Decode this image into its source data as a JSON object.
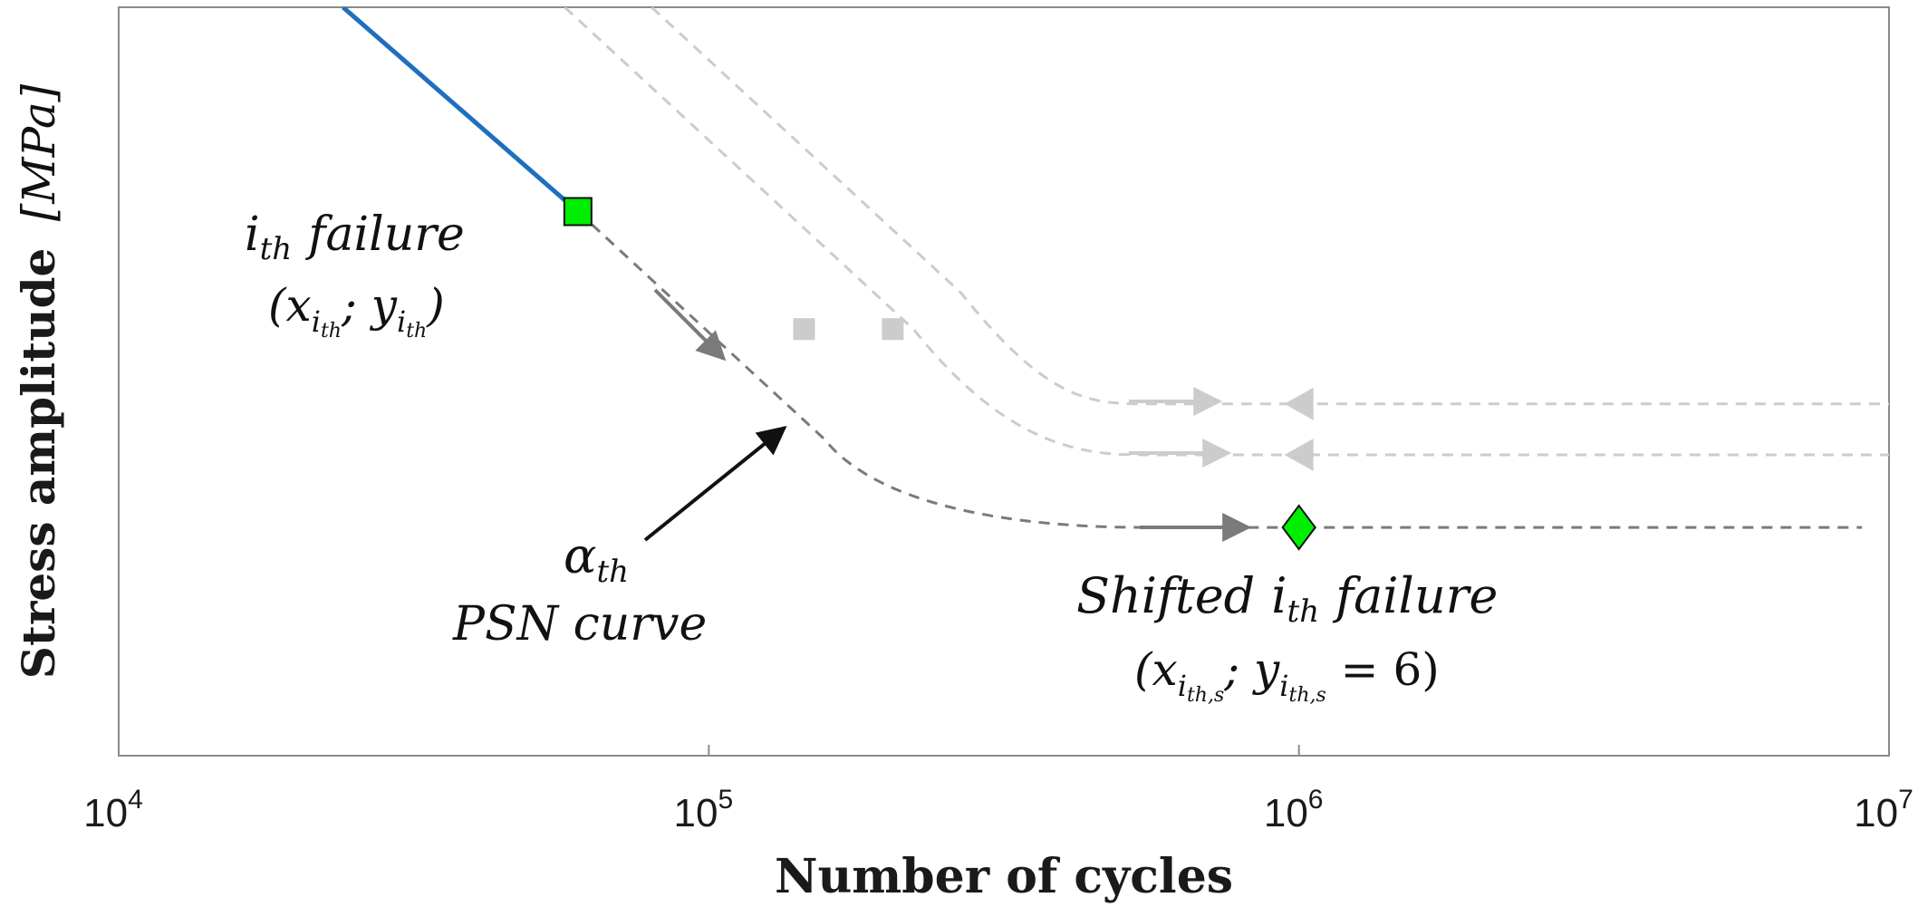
{
  "chart_data": {
    "type": "line",
    "xlabel": "Number of cycles",
    "ylabel": "Stress amplitude",
    "ylabel_unit": "[MPa]",
    "x_scale": "log",
    "xlim": [
      10000,
      10000000
    ],
    "xticks": [
      {
        "value": 10000,
        "mantissa": "10",
        "exponent": "4"
      },
      {
        "value": 100000,
        "mantissa": "10",
        "exponent": "5"
      },
      {
        "value": 1000000,
        "mantissa": "10",
        "exponent": "6"
      },
      {
        "value": 10000000,
        "mantissa": "10",
        "exponent": "7"
      }
    ],
    "ylim": [
      0,
      10
    ],
    "y_tick_labels": "none",
    "grid": false,
    "colors": {
      "solid_curve": "#1f6fbf",
      "alpha_curve": "#7a7a7a",
      "faded_curves": "#cccccc",
      "failure_marker": "#00ee00",
      "annotation_arrow": "#111111"
    },
    "series": [
      {
        "style": "solid",
        "points": [
          [
            24000,
            10
          ],
          [
            60000,
            7.27
          ]
        ]
      },
      {
        "style": "dashed-dark",
        "knee_x": 60000,
        "knee_y": 7.27,
        "plateau_y": 3.05,
        "plateau_start_x": 550000,
        "end_x": 9000000
      },
      {
        "style": "dashed-light",
        "start_x": 57000,
        "start_y": 10,
        "plateau_y": 4.02,
        "plateau_start_x": 550000,
        "end_x": 10000000
      },
      {
        "style": "dashed-light",
        "start_x": 80000,
        "start_y": 10,
        "plateau_y": 4.7,
        "plateau_start_x": 550000,
        "end_x": 10000000
      }
    ],
    "markers": [
      {
        "shape": "square",
        "x": 60000,
        "y": 7.27,
        "color": "#00ee00"
      },
      {
        "shape": "square",
        "x": 145000,
        "y": 5.7,
        "color": "#cccccc"
      },
      {
        "shape": "square",
        "x": 205000,
        "y": 5.7,
        "color": "#cccccc"
      },
      {
        "shape": "diamond",
        "x": 1000000,
        "y": 3.05,
        "color": "#00ee00"
      },
      {
        "shape": "triangle-left",
        "x": 1000000,
        "y": 4.02,
        "color": "#cccccc"
      },
      {
        "shape": "triangle-left",
        "x": 1000000,
        "y": 4.7,
        "color": "#cccccc"
      }
    ],
    "annotations": {
      "ith_failure": {
        "line1_i": "i",
        "line1_sub": "th",
        "line1_word": "failure",
        "line2_open": "(x",
        "line2_sub1": "i",
        "line2_sub1b": "th",
        "line2_sep": "; y",
        "line2_sub2": "i",
        "line2_sub2b": "th",
        "line2_close": ")"
      },
      "alpha": {
        "symbol": "α",
        "sub": "th",
        "line2": "PSN curve"
      },
      "shifted": {
        "line1_word": "Shifted",
        "line1_i": "i",
        "line1_sub": "th",
        "line1_word2": "failure",
        "line2_open": "(x",
        "line2_sub1": "i",
        "line2_sub1b": "th,s",
        "line2_sep": "; y",
        "line2_sub2": "i",
        "line2_sub2b": "th,s",
        "line2_eq": " = 6)"
      }
    }
  }
}
